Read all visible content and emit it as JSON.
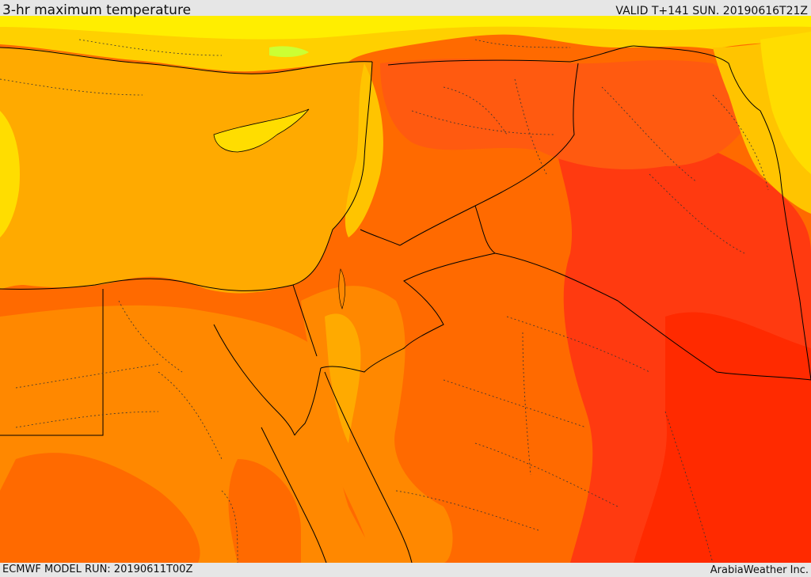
{
  "header": {
    "title": "3-hr maximum temperature",
    "valid_time": "VALID T+141 SUN. 20190616T21Z"
  },
  "footer": {
    "model_run": "ECMWF MODEL RUN: 20190611T00Z",
    "credit": "ArabiaWeather Inc."
  },
  "map": {
    "field": "temperature",
    "palette": {
      "light-yellow": "#ffff33",
      "yellow": "#ffdd00",
      "gold": "#ffc400",
      "amber": "#ffaa00",
      "orange": "#ff8800",
      "dark-orange": "#ff6a00",
      "red-orange": "#ff4d1a",
      "red": "#ff2a00"
    },
    "border-color": "#000000"
  }
}
